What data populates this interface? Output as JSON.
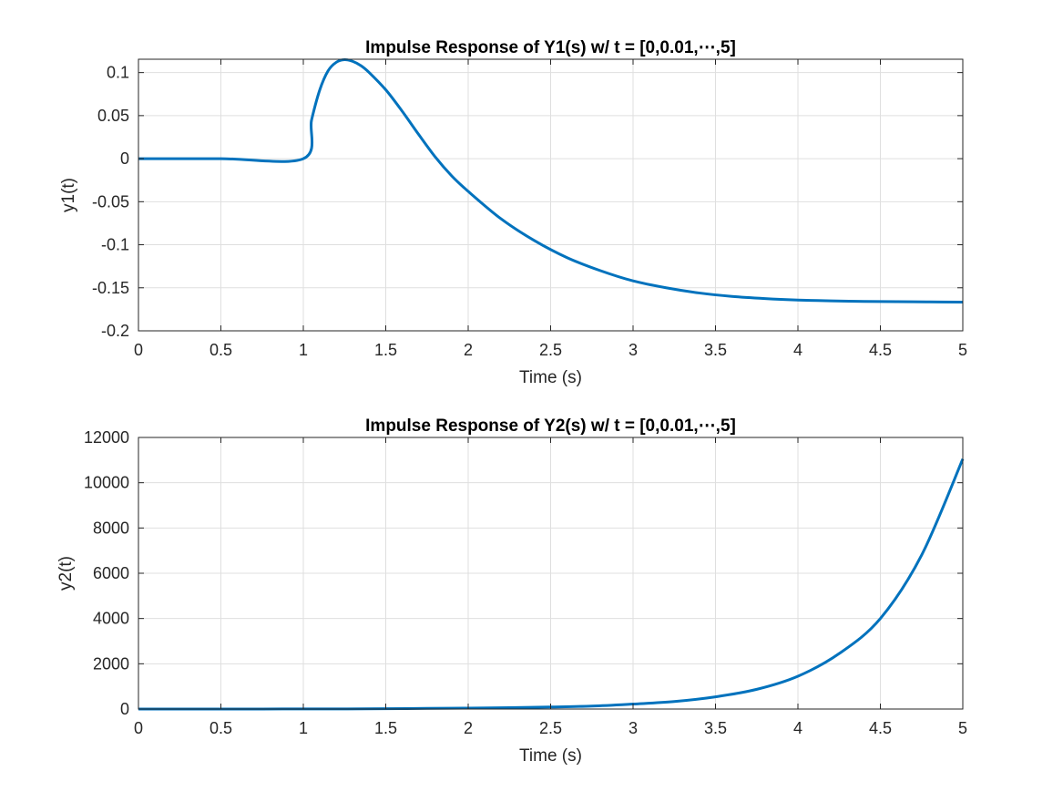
{
  "chart_data": [
    {
      "type": "line",
      "title": "Impulse Response of Y1(s) w/ t = [0,0.01,⋯,5]",
      "xlabel": "Time (s)",
      "ylabel": "y1(t)",
      "xlim": [
        0,
        5
      ],
      "ylim": [
        -0.2,
        0.1155
      ],
      "xticks": [
        0,
        0.5,
        1,
        1.5,
        2,
        2.5,
        3,
        3.5,
        4,
        4.5,
        5
      ],
      "xtick_labels": [
        "0",
        "0.5",
        "1",
        "1.5",
        "2",
        "2.5",
        "3",
        "3.5",
        "4",
        "4.5",
        "5"
      ],
      "yticks": [
        -0.2,
        -0.15,
        -0.1,
        -0.05,
        0,
        0.05,
        0.1
      ],
      "ytick_labels": [
        "-0.2",
        "-0.15",
        "-0.1",
        "-0.05",
        "0",
        "0.05",
        "0.1"
      ],
      "grid": true,
      "color": "#0072BD",
      "series": [
        {
          "x": [
            0,
            0.5,
            1.0,
            1.05,
            1.1,
            1.15,
            1.2,
            1.25,
            1.3,
            1.35,
            1.4,
            1.5,
            1.6,
            1.7,
            1.8,
            1.9,
            2.0,
            2.2,
            2.4,
            2.6,
            2.8,
            3.0,
            3.2,
            3.4,
            3.6,
            3.8,
            4.0,
            4.2,
            4.4,
            4.6,
            4.8,
            5.0
          ],
          "y": [
            0,
            0,
            0,
            0.045,
            0.08,
            0.102,
            0.112,
            0.115,
            0.113,
            0.108,
            0.1,
            0.08,
            0.055,
            0.028,
            0.002,
            -0.02,
            -0.038,
            -0.07,
            -0.095,
            -0.115,
            -0.13,
            -0.142,
            -0.15,
            -0.156,
            -0.16,
            -0.1625,
            -0.1642,
            -0.1652,
            -0.1658,
            -0.1661,
            -0.1664,
            -0.1666
          ]
        }
      ]
    },
    {
      "type": "line",
      "title": "Impulse Response of Y2(s) w/ t = [0,0.01,⋯,5]",
      "xlabel": "Time (s)",
      "ylabel": "y2(t)",
      "xlim": [
        0,
        5
      ],
      "ylim": [
        0,
        12000
      ],
      "xticks": [
        0,
        0.5,
        1,
        1.5,
        2,
        2.5,
        3,
        3.5,
        4,
        4.5,
        5
      ],
      "xtick_labels": [
        "0",
        "0.5",
        "1",
        "1.5",
        "2",
        "2.5",
        "3",
        "3.5",
        "4",
        "4.5",
        "5"
      ],
      "yticks": [
        0,
        2000,
        4000,
        6000,
        8000,
        10000,
        12000
      ],
      "ytick_labels": [
        "0",
        "2000",
        "4000",
        "6000",
        "8000",
        "10000",
        "12000"
      ],
      "grid": true,
      "color": "#0072BD",
      "series": [
        {
          "x": [
            0,
            0.25,
            0.5,
            0.75,
            1.0,
            1.25,
            1.5,
            1.75,
            2.0,
            2.25,
            2.5,
            2.75,
            3.0,
            3.25,
            3.5,
            3.75,
            4.0,
            4.25,
            4.5,
            4.75,
            5.0
          ],
          "y": [
            0.4,
            0.4,
            0.8,
            2,
            4,
            6,
            13,
            28,
            40,
            60,
            90,
            130,
            220,
            330,
            540,
            870,
            1450,
            2450,
            4000,
            6800,
            11050
          ]
        }
      ]
    }
  ]
}
